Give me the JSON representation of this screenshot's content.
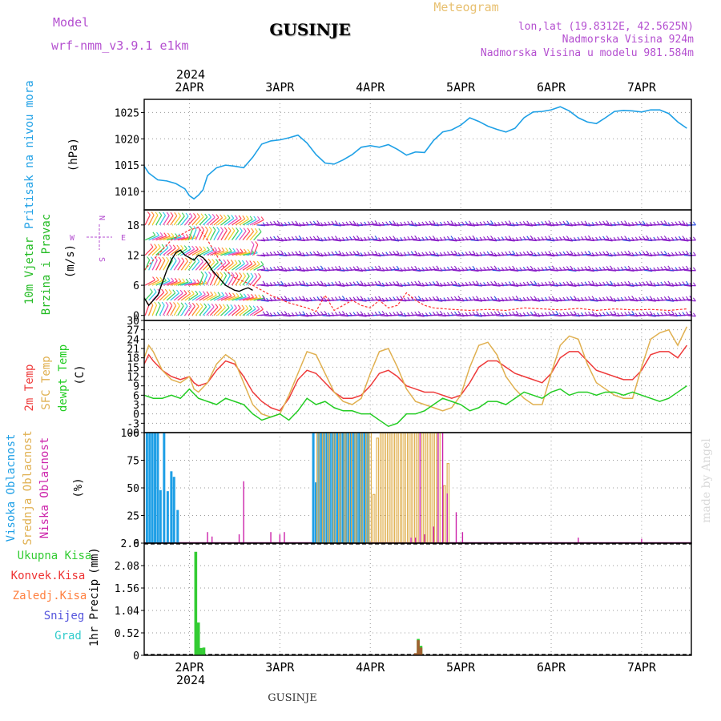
{
  "header": {
    "model_label": "Model",
    "model_value": "wrf-nmm_v3.9.1  e1km",
    "station": "GUSINJE",
    "product": "Meteogram",
    "coords": "lon,lat (19.8312E, 42.5625N)",
    "elevation": "Nadmorska Visina 924m",
    "model_elevation": "Nadmorska Visina u modelu 981.584m",
    "footer_station": "GUSINJE",
    "watermark": "made by Angel"
  },
  "time_axis": {
    "year": "2024",
    "day_labels": [
      "2APR",
      "3APR",
      "4APR",
      "5APR",
      "6APR",
      "7APR"
    ],
    "day_offsets": [
      0.5,
      1.5,
      2.5,
      3.5,
      4.5,
      5.5
    ],
    "range_days": [
      0,
      6.05
    ]
  },
  "colors": {
    "pressure": "#1ea0e6",
    "wind_speed": "#000000",
    "gust": "#ff3030",
    "temp_2m": "#ee3a3a",
    "temp_sfc": "#e0b050",
    "dewpoint": "#22cc22",
    "cloud_high": "#1e9fe6",
    "cloud_mid": "#e0b050",
    "cloud_low": "#cc22aa",
    "precip_total": "#33cc33",
    "precip_conv": "#ee3333",
    "precip_frozen": "#ff8040",
    "snow": "#5555dd",
    "graupel": "#33cccc"
  },
  "chart_data": [
    {
      "type": "line",
      "id": "pressure",
      "ylabel_main": "Pritisak na nivou mora",
      "ylabel_unit": "(hPa)",
      "yticks": [
        1010,
        1015,
        1020,
        1025
      ],
      "ylim": [
        1006.5,
        1027.5
      ],
      "grid": true,
      "series": [
        {
          "x": [
            0,
            0.05,
            0.15,
            0.25,
            0.35,
            0.45,
            0.5,
            0.55,
            0.6,
            0.65,
            0.7,
            0.8,
            0.9,
            1.0,
            1.1,
            1.2,
            1.3,
            1.4,
            1.5,
            1.6,
            1.7,
            1.8,
            1.9,
            2.0,
            2.1,
            2.2,
            2.3,
            2.4,
            2.5,
            2.6,
            2.7,
            2.8,
            2.9,
            3.0,
            3.1,
            3.2,
            3.3,
            3.4,
            3.5,
            3.6,
            3.7,
            3.8,
            3.9,
            4.0,
            4.1,
            4.2,
            4.3,
            4.4,
            4.5,
            4.6,
            4.7,
            4.8,
            4.9,
            5.0,
            5.1,
            5.2,
            5.3,
            5.4,
            5.5,
            5.6,
            5.7,
            5.8,
            5.9,
            6.0
          ],
          "values": [
            1014.8,
            1013.5,
            1012.2,
            1012.0,
            1011.5,
            1010.5,
            1009.2,
            1008.6,
            1009.3,
            1010.3,
            1013.0,
            1014.5,
            1015.0,
            1014.8,
            1014.5,
            1016.5,
            1019.0,
            1019.6,
            1019.8,
            1020.2,
            1020.7,
            1019.2,
            1017.0,
            1015.4,
            1015.2,
            1016.0,
            1017.0,
            1018.4,
            1018.7,
            1018.4,
            1018.9,
            1018.0,
            1016.9,
            1017.5,
            1017.4,
            1019.7,
            1021.3,
            1021.7,
            1022.6,
            1024.0,
            1023.3,
            1022.4,
            1021.8,
            1021.3,
            1022.0,
            1024.0,
            1025.1,
            1025.2,
            1025.5,
            1026.1,
            1025.3,
            1024.0,
            1023.2,
            1022.9,
            1024.0,
            1025.2,
            1025.4,
            1025.3,
            1025.1,
            1025.5,
            1025.5,
            1024.8,
            1023.2,
            1022.0
          ]
        }
      ]
    },
    {
      "type": "line",
      "id": "wind",
      "ylabel_main": "10m Vjetar",
      "ylabel_sub": "Brzina i Pravac",
      "ylabel_unit": "(m/s)",
      "compass": {
        "n": "N",
        "s": "S",
        "w": "W",
        "e": "E"
      },
      "yticks": [
        0,
        6,
        12,
        18
      ],
      "ylim": [
        -1,
        21
      ],
      "grid": true,
      "series": [
        {
          "name": "speed",
          "x": [
            0,
            0.05,
            0.1,
            0.15,
            0.2,
            0.25,
            0.3,
            0.35,
            0.4,
            0.45,
            0.5,
            0.55,
            0.6,
            0.65,
            0.7,
            0.75,
            0.8,
            0.85,
            0.9,
            0.95,
            1.0,
            1.05,
            1.1,
            1.15,
            1.2
          ],
          "values": [
            3.5,
            2.0,
            3.0,
            4.0,
            6.5,
            9.0,
            11.0,
            12.5,
            13.0,
            12.0,
            11.5,
            11.0,
            12.0,
            11.5,
            10.5,
            9.0,
            8.0,
            7.0,
            6.0,
            5.5,
            5.0,
            4.8,
            5.2,
            5.5,
            5.0
          ]
        },
        {
          "name": "gust",
          "x": [
            0,
            0.1,
            0.2,
            0.3,
            0.4,
            0.5,
            0.6,
            0.7,
            0.8,
            0.9,
            1.0,
            1.2,
            1.4,
            1.6,
            1.8,
            1.9,
            2.0,
            2.1,
            2.2,
            2.3,
            2.4,
            2.5,
            2.6,
            2.7,
            2.8,
            2.9,
            3.0,
            3.1,
            3.2,
            3.4,
            3.6,
            3.8,
            4.0,
            4.2,
            4.4,
            4.6,
            4.8,
            5.0,
            5.2,
            5.4,
            5.6,
            5.8,
            6.0
          ],
          "values": [
            9.0,
            11.0,
            13.0,
            15.0,
            16.0,
            17.0,
            17.5,
            15.0,
            12.0,
            9.0,
            7.5,
            6.0,
            4.0,
            2.5,
            1.5,
            0.8,
            4.0,
            1.0,
            2.0,
            3.0,
            2.0,
            1.5,
            3.0,
            1.5,
            2.0,
            4.5,
            3.0,
            2.0,
            1.5,
            1.2,
            1.0,
            1.2,
            1.0,
            1.5,
            1.3,
            1.1,
            1.4,
            1.0,
            1.3,
            1.1,
            1.2,
            1.0,
            1.3
          ]
        }
      ]
    },
    {
      "type": "line",
      "id": "temperature",
      "ylabel_main": "2m Temp",
      "ylabel_sub": "SFC Temp",
      "ylabel_sub2": "dewpt Temp",
      "ylabel_unit": "(C)",
      "yticks": [
        -6,
        -3,
        0,
        3,
        6,
        9,
        12,
        15,
        18,
        21,
        24,
        27,
        30
      ],
      "ylim": [
        -6,
        30
      ],
      "grid": true,
      "series": [
        {
          "name": "2m",
          "x": [
            0,
            0.05,
            0.1,
            0.2,
            0.3,
            0.4,
            0.5,
            0.55,
            0.6,
            0.7,
            0.8,
            0.9,
            1.0,
            1.1,
            1.2,
            1.3,
            1.4,
            1.5,
            1.6,
            1.7,
            1.8,
            1.9,
            2.0,
            2.1,
            2.2,
            2.3,
            2.4,
            2.5,
            2.6,
            2.7,
            2.8,
            2.9,
            3.0,
            3.1,
            3.2,
            3.3,
            3.4,
            3.5,
            3.6,
            3.7,
            3.8,
            3.9,
            4.0,
            4.1,
            4.2,
            4.3,
            4.4,
            4.5,
            4.6,
            4.7,
            4.8,
            4.9,
            5.0,
            5.1,
            5.2,
            5.3,
            5.4,
            5.5,
            5.6,
            5.7,
            5.8,
            5.9,
            6.0
          ],
          "values": [
            16,
            19,
            17,
            14,
            12,
            11,
            12,
            10,
            9,
            10,
            14,
            17,
            16,
            12,
            7,
            4,
            2,
            1,
            5,
            11,
            14,
            13,
            10,
            7,
            5,
            5,
            6,
            9,
            13,
            14,
            12,
            9,
            8,
            7,
            7,
            6,
            5,
            6,
            10,
            15,
            17,
            17,
            15,
            13,
            12,
            11,
            10,
            13,
            18,
            20,
            20,
            17,
            14,
            13,
            12,
            11,
            11,
            14,
            19,
            20,
            20,
            18,
            22
          ]
        },
        {
          "name": "sfc",
          "x": [
            0,
            0.05,
            0.1,
            0.2,
            0.3,
            0.4,
            0.5,
            0.55,
            0.6,
            0.7,
            0.8,
            0.9,
            1.0,
            1.1,
            1.2,
            1.3,
            1.4,
            1.5,
            1.6,
            1.7,
            1.8,
            1.9,
            2.0,
            2.1,
            2.2,
            2.3,
            2.4,
            2.5,
            2.6,
            2.7,
            2.8,
            2.9,
            3.0,
            3.1,
            3.2,
            3.3,
            3.4,
            3.5,
            3.6,
            3.7,
            3.8,
            3.9,
            4.0,
            4.1,
            4.2,
            4.3,
            4.4,
            4.5,
            4.6,
            4.7,
            4.8,
            4.9,
            5.0,
            5.1,
            5.2,
            5.3,
            5.4,
            5.5,
            5.6,
            5.7,
            5.8,
            5.9,
            6.0
          ],
          "values": [
            18,
            22,
            20,
            14,
            11,
            10,
            12,
            8,
            7,
            10,
            16,
            19,
            17,
            10,
            3,
            0,
            -1,
            0,
            6,
            13,
            20,
            19,
            13,
            7,
            4,
            3,
            5,
            13,
            20,
            21,
            15,
            8,
            4,
            3,
            2,
            1,
            2,
            6,
            15,
            22,
            23,
            19,
            12,
            8,
            5,
            3,
            3,
            13,
            22,
            25,
            24,
            16,
            10,
            8,
            6,
            5,
            5,
            15,
            24,
            26,
            27,
            22,
            28
          ]
        },
        {
          "name": "dewpt",
          "x": [
            0,
            0.1,
            0.2,
            0.3,
            0.4,
            0.5,
            0.6,
            0.7,
            0.8,
            0.9,
            1.0,
            1.1,
            1.2,
            1.3,
            1.4,
            1.5,
            1.6,
            1.7,
            1.8,
            1.9,
            2.0,
            2.1,
            2.2,
            2.3,
            2.4,
            2.5,
            2.6,
            2.7,
            2.8,
            2.9,
            3.0,
            3.1,
            3.2,
            3.3,
            3.4,
            3.5,
            3.6,
            3.7,
            3.8,
            3.9,
            4.0,
            4.1,
            4.2,
            4.3,
            4.4,
            4.5,
            4.6,
            4.7,
            4.8,
            4.9,
            5.0,
            5.1,
            5.2,
            5.3,
            5.4,
            5.5,
            5.6,
            5.7,
            5.8,
            5.9,
            6.0
          ],
          "values": [
            6,
            5,
            5,
            6,
            5,
            8,
            5,
            4,
            3,
            5,
            4,
            3,
            0,
            -2,
            -1,
            0,
            -2,
            1,
            5,
            3,
            4,
            2,
            1,
            1,
            0,
            0,
            -2,
            -4,
            -3,
            0,
            0,
            1,
            3,
            5,
            4,
            3,
            1,
            2,
            4,
            4,
            3,
            5,
            7,
            6,
            5,
            7,
            8,
            6,
            7,
            7,
            6,
            7,
            7,
            6,
            7,
            6,
            5,
            4,
            5,
            7,
            9
          ]
        }
      ]
    },
    {
      "type": "bar",
      "id": "clouds",
      "ylabel_main": "Visoka Oblacnost",
      "ylabel_sub": "Srednja Oblacnost",
      "ylabel_sub2": "Niska Oblacnost",
      "ylabel_unit": "(%)",
      "yticks": [
        0,
        25,
        50,
        75,
        100
      ],
      "ylim": [
        0,
        100
      ],
      "grid": true,
      "series": [
        {
          "name": "high",
          "x": [
            0.03,
            0.06,
            0.09,
            0.12,
            0.15,
            0.18,
            0.22,
            0.26,
            0.3,
            0.33,
            0.37,
            1.87,
            1.9,
            1.93,
            1.96,
            1.99,
            2.02,
            2.05,
            2.08,
            2.11,
            2.14,
            2.17,
            2.2,
            2.23,
            2.26,
            2.29,
            2.32,
            2.35,
            2.38,
            2.41,
            2.44,
            2.47
          ],
          "values": [
            100,
            100,
            100,
            100,
            100,
            48,
            100,
            47,
            65,
            60,
            30,
            100,
            55,
            100,
            100,
            100,
            100,
            100,
            100,
            100,
            100,
            100,
            100,
            100,
            100,
            100,
            100,
            100,
            100,
            100,
            100,
            100
          ]
        },
        {
          "name": "mid",
          "x": [
            1.92,
            1.98,
            2.04,
            2.1,
            2.16,
            2.22,
            2.28,
            2.34,
            2.4,
            2.46,
            2.5,
            2.54,
            2.58,
            2.62,
            2.66,
            2.7,
            2.74,
            2.78,
            2.82,
            2.86,
            2.9,
            2.94,
            2.98,
            3.02,
            3.06,
            3.1,
            3.14,
            3.18,
            3.22,
            3.26,
            3.32,
            3.36
          ],
          "values": [
            100,
            100,
            100,
            100,
            100,
            100,
            100,
            100,
            100,
            100,
            100,
            44,
            95,
            100,
            100,
            100,
            100,
            100,
            100,
            100,
            100,
            100,
            100,
            100,
            100,
            100,
            100,
            100,
            100,
            100,
            52,
            72
          ]
        },
        {
          "name": "low",
          "x": [
            0.7,
            0.75,
            1.05,
            1.1,
            1.4,
            1.5,
            1.55,
            2.95,
            3.0,
            3.05,
            3.1,
            3.2,
            3.25,
            3.3,
            3.35,
            3.45,
            3.52,
            4.8,
            5.5
          ],
          "values": [
            10,
            6,
            8,
            56,
            10,
            8,
            10,
            5,
            5,
            100,
            8,
            15,
            100,
            100,
            45,
            28,
            10,
            5,
            4
          ]
        }
      ]
    },
    {
      "type": "bar",
      "id": "precip",
      "ylabel_main": "1hr Precip",
      "ylabel_unit": "(mm)",
      "legend": [
        "Ukupna Kisa",
        "Konvek.Kisa",
        "Zaledj.Kisa",
        "Snijeg",
        "Grad"
      ],
      "yticks": [
        0,
        0.52,
        1.04,
        1.56,
        2.08,
        2.6
      ],
      "ylim": [
        0,
        2.6
      ],
      "grid": true,
      "series": [
        {
          "name": "total",
          "x": [
            0.57,
            0.6,
            0.63,
            0.66,
            3.03,
            3.06
          ],
          "values": [
            2.4,
            0.76,
            0.17,
            0.18,
            0.38,
            0.22
          ]
        },
        {
          "name": "frozen",
          "x": [
            3.0,
            3.03,
            3.06
          ],
          "values": [
            0.05,
            0.35,
            0.18
          ]
        }
      ]
    }
  ]
}
